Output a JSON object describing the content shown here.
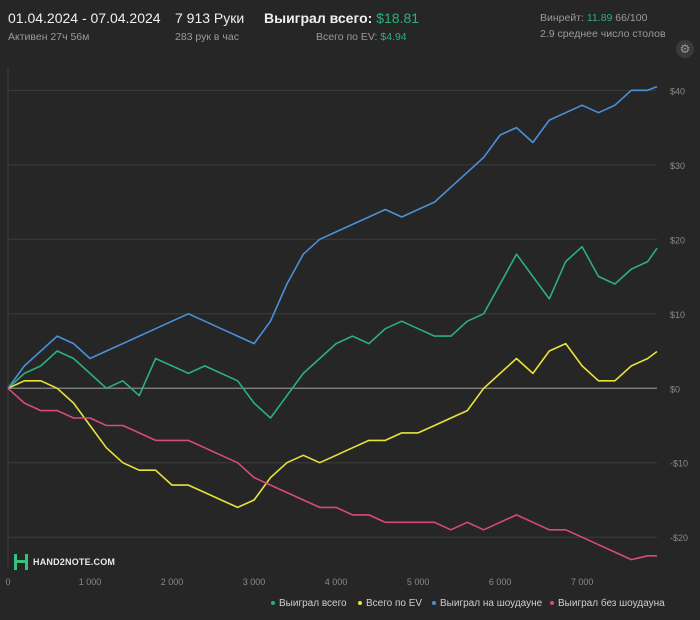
{
  "header": {
    "date_range": "01.04.2024 - 07.04.2024",
    "active_time": "Активен 27ч 56м",
    "hands": "7 913 Руки",
    "hands_per_hour": "283 рук в час",
    "won_total_label": "Выиграл всего:",
    "won_total_value": "$18.81",
    "ev_label": "Всего по EV:",
    "ev_value": "$4.94",
    "winrate_label": "Винрейт:",
    "winrate_value": "11.89",
    "winrate_unit": "66/100",
    "avg_tables": "2.9 среднее число столов"
  },
  "logo_text": "HAND2NOTE.COM",
  "colors": {
    "background": "#262626",
    "won_total": "#2bb07a",
    "ev": "#e8e23a",
    "showdown": "#4a90d9",
    "non_showdown": "#d94a7a"
  },
  "chart_data": {
    "type": "line",
    "xlabel": "",
    "ylabel": "",
    "xlim": [
      0,
      7913
    ],
    "ylim": [
      -24,
      43
    ],
    "x_ticks": [
      0,
      1000,
      2000,
      3000,
      4000,
      5000,
      6000,
      7000
    ],
    "x_tick_labels": [
      "0",
      "1 000",
      "2 000",
      "3 000",
      "4 000",
      "5 000",
      "6 000",
      "7 000"
    ],
    "y_ticks": [
      40,
      30,
      20,
      10,
      0,
      -10,
      -20
    ],
    "y_tick_labels": [
      "$40",
      "$30",
      "$20",
      "$10",
      "$0",
      "-$10",
      "-$20"
    ],
    "grid": true,
    "legend_position": "bottom-right",
    "x": [
      0,
      200,
      400,
      600,
      800,
      1000,
      1200,
      1400,
      1600,
      1800,
      2000,
      2200,
      2400,
      2600,
      2800,
      3000,
      3200,
      3400,
      3600,
      3800,
      4000,
      4200,
      4400,
      4600,
      4800,
      5000,
      5200,
      5400,
      5600,
      5800,
      6000,
      6200,
      6400,
      6600,
      6800,
      7000,
      7200,
      7400,
      7600,
      7800,
      7913
    ],
    "series": [
      {
        "name": "Выиграл всего",
        "values": [
          0,
          2,
          3,
          5,
          4,
          2,
          0,
          1,
          -1,
          4,
          3,
          2,
          3,
          2,
          1,
          -2,
          -4,
          -1,
          2,
          4,
          6,
          7,
          6,
          8,
          9,
          8,
          7,
          7,
          9,
          10,
          14,
          18,
          15,
          12,
          17,
          19,
          15,
          14,
          16,
          17,
          18.81
        ]
      },
      {
        "name": "Всего по EV",
        "values": [
          0,
          1,
          1,
          0,
          -2,
          -5,
          -8,
          -10,
          -11,
          -11,
          -13,
          -13,
          -14,
          -15,
          -16,
          -15,
          -12,
          -10,
          -9,
          -10,
          -9,
          -8,
          -7,
          -7,
          -6,
          -6,
          -5,
          -4,
          -3,
          0,
          2,
          4,
          2,
          5,
          6,
          3,
          1,
          1,
          3,
          4,
          4.94
        ]
      },
      {
        "name": "Выиграл на шоудауне",
        "values": [
          0,
          3,
          5,
          7,
          6,
          4,
          5,
          6,
          7,
          8,
          9,
          10,
          9,
          8,
          7,
          6,
          9,
          14,
          18,
          20,
          21,
          22,
          23,
          24,
          23,
          24,
          25,
          27,
          29,
          31,
          34,
          35,
          33,
          36,
          37,
          38,
          37,
          38,
          40,
          40,
          40.5
        ]
      },
      {
        "name": "Выиграл без шоудауна",
        "values": [
          0,
          -2,
          -3,
          -3,
          -4,
          -4,
          -5,
          -5,
          -6,
          -7,
          -7,
          -7,
          -8,
          -9,
          -10,
          -12,
          -13,
          -14,
          -15,
          -16,
          -16,
          -17,
          -17,
          -18,
          -18,
          -18,
          -18,
          -19,
          -18,
          -19,
          -18,
          -17,
          -18,
          -19,
          -19,
          -20,
          -21,
          -22,
          -23,
          -22.5,
          -22.5
        ]
      }
    ]
  },
  "legend": [
    {
      "label": "Выиграл всего"
    },
    {
      "label": "Всего по EV"
    },
    {
      "label": "Выиграл на шоудауне"
    },
    {
      "label": "Выиграл без шоудауна"
    }
  ],
  "settings_icon": "gear-icon"
}
